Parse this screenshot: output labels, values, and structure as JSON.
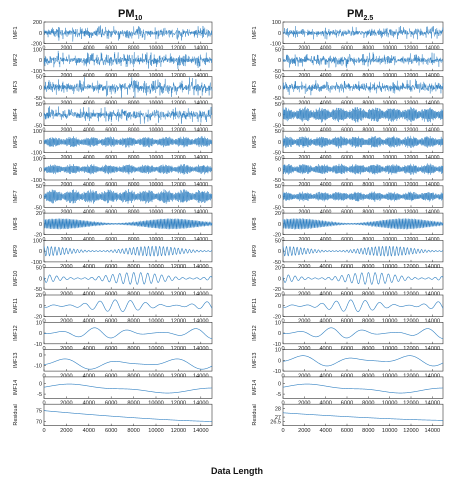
{
  "titles": {
    "left_main": "PM",
    "left_sub": "10",
    "right_main": "PM",
    "right_sub": "2.5"
  },
  "xlabel": "Data Length",
  "colors": {
    "line": "#2f7fc1",
    "axis": "#333333"
  },
  "chart_data": [
    {
      "type": "line",
      "title": "PM10",
      "xlabel": "Data Length",
      "xlim": [
        0,
        15000
      ],
      "xticks": [
        "0",
        "2000",
        "4000",
        "6000",
        "8000",
        "10000",
        "12000",
        "14000"
      ],
      "panels": [
        {
          "ylabel": "IMF1",
          "yticks": [
            "200",
            "0",
            "-200"
          ],
          "ylim": [
            -200,
            200
          ],
          "pattern": "noise",
          "amplitude": 0.7
        },
        {
          "ylabel": "IMF2",
          "yticks": [
            "100",
            "0",
            "-100"
          ],
          "ylim": [
            -100,
            100
          ],
          "pattern": "noise",
          "amplitude": 0.75
        },
        {
          "ylabel": "IMF3",
          "yticks": [
            "50",
            "0",
            "-50"
          ],
          "ylim": [
            -50,
            50
          ],
          "pattern": "noise",
          "amplitude": 0.8
        },
        {
          "ylabel": "IMF4",
          "yticks": [
            "50",
            "0",
            "-50"
          ],
          "ylim": [
            -50,
            50
          ],
          "pattern": "noise",
          "amplitude": 0.75
        },
        {
          "ylabel": "IMF5",
          "yticks": [
            "100",
            "0",
            "-100"
          ],
          "ylim": [
            -100,
            100
          ],
          "pattern": "dense",
          "amplitude": 0.55
        },
        {
          "ylabel": "IMF6",
          "yticks": [
            "100",
            "0",
            "-100"
          ],
          "ylim": [
            -100,
            100
          ],
          "pattern": "dense",
          "amplitude": 0.5
        },
        {
          "ylabel": "IMF7",
          "yticks": [
            "50",
            "0",
            "-50"
          ],
          "ylim": [
            -50,
            50
          ],
          "pattern": "dense",
          "amplitude": 0.7
        },
        {
          "ylabel": "IMF8",
          "yticks": [
            "20",
            "0",
            "-20"
          ],
          "ylim": [
            -20,
            20
          ],
          "pattern": "wave",
          "cycles": 120,
          "amplitude": 0.5
        },
        {
          "ylabel": "IMF9",
          "yticks": [
            "100",
            "0",
            "-100"
          ],
          "ylim": [
            -100,
            100
          ],
          "pattern": "wave",
          "cycles": 45,
          "amplitude": 0.45
        },
        {
          "ylabel": "IMF10",
          "yticks": [
            "50",
            "0",
            "-50"
          ],
          "ylim": [
            -50,
            50
          ],
          "pattern": "wave",
          "cycles": 24,
          "amplitude": 0.55
        },
        {
          "ylabel": "IMF11",
          "yticks": [
            "20",
            "0",
            "-20"
          ],
          "ylim": [
            -20,
            20
          ],
          "pattern": "wave",
          "cycles": 11,
          "amplitude": 0.55
        },
        {
          "ylabel": "IMF12",
          "yticks": [
            "10",
            "0",
            "-10"
          ],
          "ylim": [
            -10,
            10
          ],
          "pattern": "wave",
          "cycles": 5,
          "amplitude": 0.5
        },
        {
          "ylabel": "IMF13",
          "yticks": [
            "0",
            "-10"
          ],
          "ylim": [
            -15,
            5
          ],
          "pattern": "wave",
          "cycles": 3,
          "amplitude": 0.55,
          "offset": -0.3
        },
        {
          "ylabel": "IMF14",
          "yticks": [
            "0",
            "-5"
          ],
          "ylim": [
            -7,
            3
          ],
          "pattern": "wave",
          "cycles": 1,
          "amplitude": 0.45,
          "offset": -0.1
        },
        {
          "ylabel": "Residual",
          "yticks": [
            "75",
            "70"
          ],
          "ylim": [
            68,
            78
          ],
          "pattern": "decline",
          "start": 0.7,
          "end": 0.2
        }
      ]
    },
    {
      "type": "line",
      "title": "PM2.5",
      "xlabel": "Data Length",
      "xlim": [
        0,
        15000
      ],
      "xticks": [
        "0",
        "2000",
        "4000",
        "6000",
        "8000",
        "10000",
        "12000",
        "14000"
      ],
      "panels": [
        {
          "ylabel": "IMF1",
          "yticks": [
            "100",
            "0",
            "-100"
          ],
          "ylim": [
            -100,
            100
          ],
          "pattern": "noise",
          "amplitude": 0.55
        },
        {
          "ylabel": "IMF2",
          "yticks": [
            "50",
            "0",
            "-50"
          ],
          "ylim": [
            -50,
            50
          ],
          "pattern": "noise",
          "amplitude": 0.6
        },
        {
          "ylabel": "IMF3",
          "yticks": [
            "50",
            "0",
            "-50"
          ],
          "ylim": [
            -50,
            50
          ],
          "pattern": "noise",
          "amplitude": 0.65
        },
        {
          "ylabel": "IMF4",
          "yticks": [
            "50",
            "0",
            "-50"
          ],
          "ylim": [
            -50,
            50
          ],
          "pattern": "dense",
          "amplitude": 0.75
        },
        {
          "ylabel": "IMF5",
          "yticks": [
            "50",
            "0",
            "-50"
          ],
          "ylim": [
            -50,
            50
          ],
          "pattern": "dense",
          "amplitude": 0.6
        },
        {
          "ylabel": "IMF6",
          "yticks": [
            "50",
            "0",
            "-50"
          ],
          "ylim": [
            -50,
            50
          ],
          "pattern": "dense",
          "amplitude": 0.55
        },
        {
          "ylabel": "IMF7",
          "yticks": [
            "50",
            "0",
            "-50"
          ],
          "ylim": [
            -50,
            50
          ],
          "pattern": "dense",
          "amplitude": 0.5
        },
        {
          "ylabel": "IMF8",
          "yticks": [
            "20",
            "0",
            "-20"
          ],
          "ylim": [
            -20,
            20
          ],
          "pattern": "wave",
          "cycles": 110,
          "amplitude": 0.5
        },
        {
          "ylabel": "IMF9",
          "yticks": [
            "50",
            "0",
            "-50"
          ],
          "ylim": [
            -50,
            50
          ],
          "pattern": "wave",
          "cycles": 45,
          "amplitude": 0.45
        },
        {
          "ylabel": "IMF10",
          "yticks": [
            "20",
            "0",
            "-20"
          ],
          "ylim": [
            -20,
            20
          ],
          "pattern": "wave",
          "cycles": 24,
          "amplitude": 0.55
        },
        {
          "ylabel": "IMF11",
          "yticks": [
            "20",
            "0",
            "-20"
          ],
          "ylim": [
            -20,
            20
          ],
          "pattern": "wave",
          "cycles": 11,
          "amplitude": 0.55
        },
        {
          "ylabel": "IMF12",
          "yticks": [
            "10",
            "0",
            "-10"
          ],
          "ylim": [
            -10,
            10
          ],
          "pattern": "wave",
          "cycles": 5,
          "amplitude": 0.5
        },
        {
          "ylabel": "IMF13",
          "yticks": [
            "10",
            "0",
            "-10"
          ],
          "ylim": [
            -10,
            10
          ],
          "pattern": "wave",
          "cycles": 3,
          "amplitude": 0.55
        },
        {
          "ylabel": "IMF14",
          "yticks": [
            "0",
            "-5"
          ],
          "ylim": [
            -7,
            3
          ],
          "pattern": "wave",
          "cycles": 1,
          "amplitude": 0.45,
          "offset": -0.1
        },
        {
          "ylabel": "Residual",
          "yticks": [
            "28",
            "27",
            "26.5"
          ],
          "ylim": [
            26,
            28.5
          ],
          "pattern": "decline",
          "start": 0.6,
          "end": 0.25
        }
      ]
    }
  ]
}
